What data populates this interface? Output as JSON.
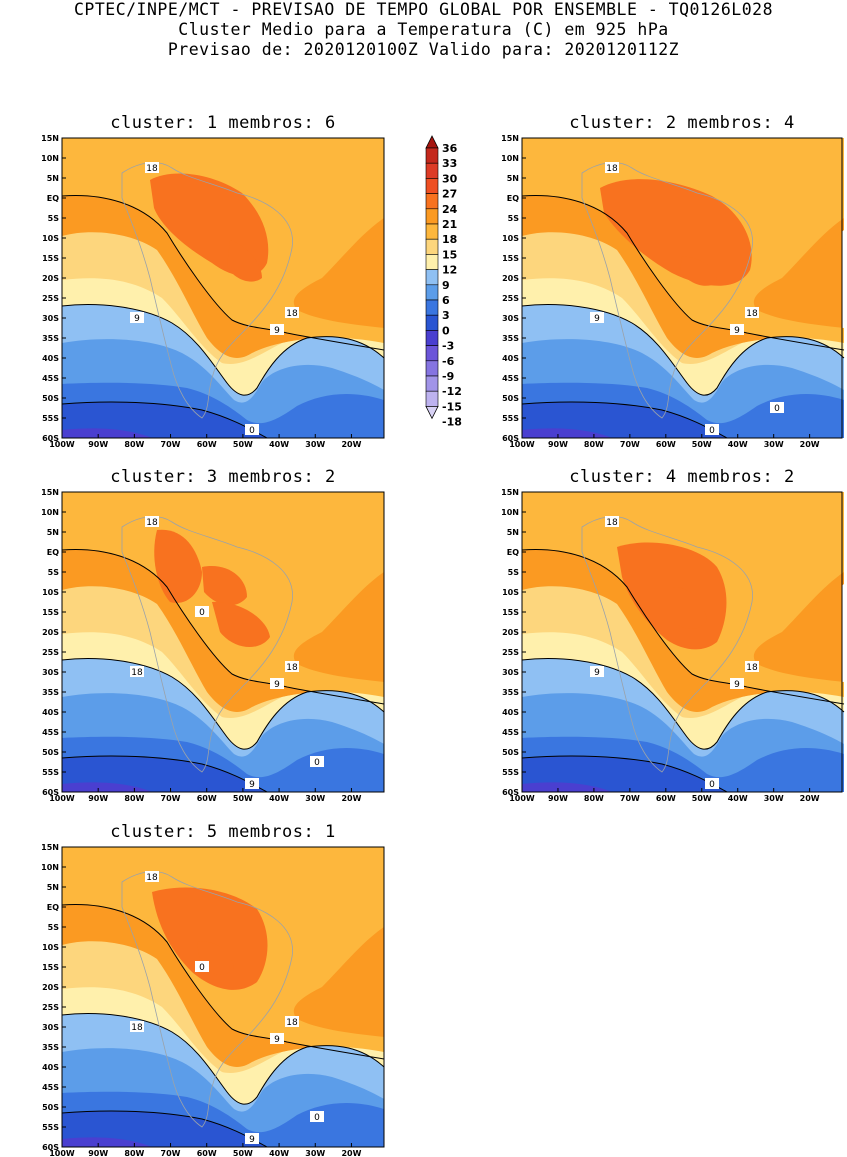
{
  "header": {
    "line1": "CPTEC/INPE/MCT - PREVISAO DE TEMPO GLOBAL POR ENSEMBLE - TQ0126L028",
    "line2": "Cluster Medio para a Temperatura (C) em 925 hPa",
    "line3": "Previsao de: 2020120100Z   Valido para: 2020120112Z"
  },
  "axes": {
    "lat_ticks": [
      "15N",
      "10N",
      "5N",
      "EQ",
      "5S",
      "10S",
      "15S",
      "20S",
      "25S",
      "30S",
      "35S",
      "40S",
      "45S",
      "50S",
      "55S",
      "60S"
    ],
    "lon_ticks": [
      "100W",
      "90W",
      "80W",
      "70W",
      "60W",
      "50W",
      "40W",
      "30W",
      "20W"
    ]
  },
  "colorbar": {
    "labels": [
      "36",
      "33",
      "30",
      "27",
      "24",
      "21",
      "18",
      "15",
      "12",
      "9",
      "6",
      "3",
      "0",
      "-3",
      "-6",
      "-9",
      "-12",
      "-15",
      "-18"
    ],
    "colors": [
      "#a5150f",
      "#c4281c",
      "#dd3b26",
      "#ef4f22",
      "#f8721f",
      "#fb9a22",
      "#fdb73d",
      "#fdd67d",
      "#fff0ac",
      "#8fc0f3",
      "#5c9de9",
      "#3a76e0",
      "#2a55d2",
      "#4a3fd0",
      "#6b55d9",
      "#8574e1",
      "#a194e8",
      "#bdb2ef",
      "#d8d2f5"
    ],
    "colors_note": "top to bottom: above 36 ... below -18 (the -18 class arrow)"
  },
  "panels": [
    {
      "title": "cluster: 1   membros: 6",
      "contour_labels": [
        "18",
        "18",
        "9",
        "9",
        "0"
      ]
    },
    {
      "title": "cluster: 2   membros: 4",
      "contour_labels": [
        "18",
        "18",
        "9",
        "9",
        "0",
        "0"
      ]
    },
    {
      "title": "cluster: 3   membros: 2",
      "contour_labels": [
        "18",
        "18",
        "18",
        "9",
        "9",
        "0",
        "0"
      ]
    },
    {
      "title": "cluster: 4   membros: 2",
      "contour_labels": [
        "18",
        "18",
        "9",
        "9",
        "0"
      ]
    },
    {
      "title": "cluster: 5   membros: 1",
      "contour_labels": [
        "18",
        "18",
        "18",
        "9",
        "9",
        "0",
        "0"
      ]
    }
  ]
}
